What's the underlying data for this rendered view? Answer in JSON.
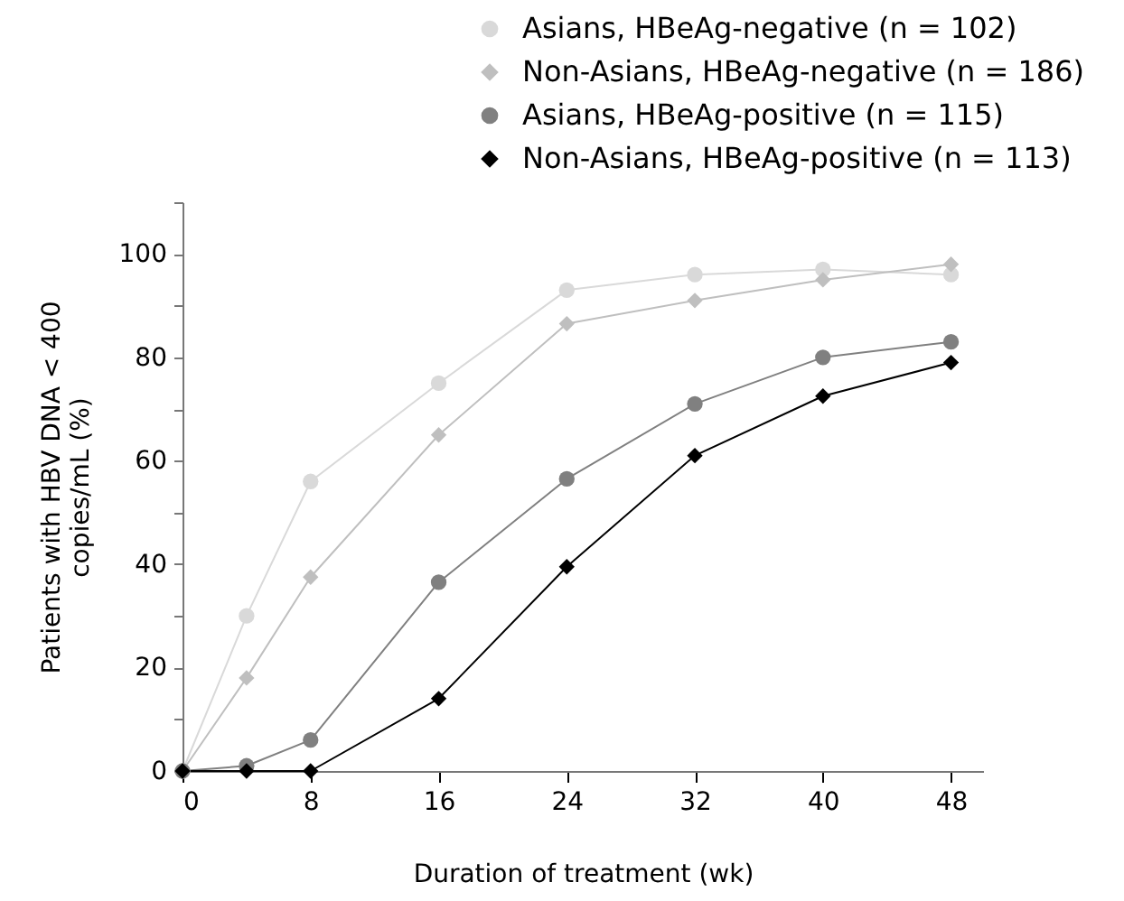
{
  "chart_data": {
    "type": "line",
    "xlabel": "Duration of treatment (wk)",
    "ylabel": "Patients with HBV DNA < 400 copies/mL (%)",
    "x": [
      0,
      4,
      8,
      16,
      24,
      32,
      40,
      48
    ],
    "series": [
      {
        "name": "Asians, HBeAg-negative (n = 102)",
        "color": "#d9d9d9",
        "marker": "circle",
        "values": [
          0,
          30,
          56,
          75,
          93,
          96,
          97,
          96
        ]
      },
      {
        "name": "Non-Asians, HBeAg-negative (n = 186)",
        "color": "#bfbfbf",
        "marker": "diamond",
        "values": [
          0,
          18,
          37.5,
          65,
          86.5,
          91,
          95,
          98
        ]
      },
      {
        "name": "Asians, HBeAg-positive (n = 115)",
        "color": "#808080",
        "marker": "circle",
        "values": [
          0,
          1,
          6,
          36.5,
          56.5,
          71,
          80,
          83
        ]
      },
      {
        "name": "Non-Asians, HBeAg-positive (n = 113)",
        "color": "#000000",
        "marker": "diamond",
        "values": [
          0,
          0,
          0,
          14,
          39.5,
          61,
          72.5,
          79
        ]
      }
    ],
    "xlim": [
      0,
      50
    ],
    "xticks": [
      0,
      8,
      16,
      24,
      32,
      40,
      48
    ],
    "ylim": [
      0,
      110
    ],
    "yticks": [
      0,
      {
        "value": 10,
        "label": null
      },
      20,
      {
        "value": 30,
        "label": null
      },
      40,
      {
        "value": 50,
        "label": null
      },
      60,
      {
        "value": 70,
        "label": null
      },
      80,
      {
        "value": 90,
        "label": null
      },
      100,
      {
        "value": 110,
        "label": null
      }
    ],
    "grid": false,
    "legend": "top right",
    "line_style": "solid"
  }
}
